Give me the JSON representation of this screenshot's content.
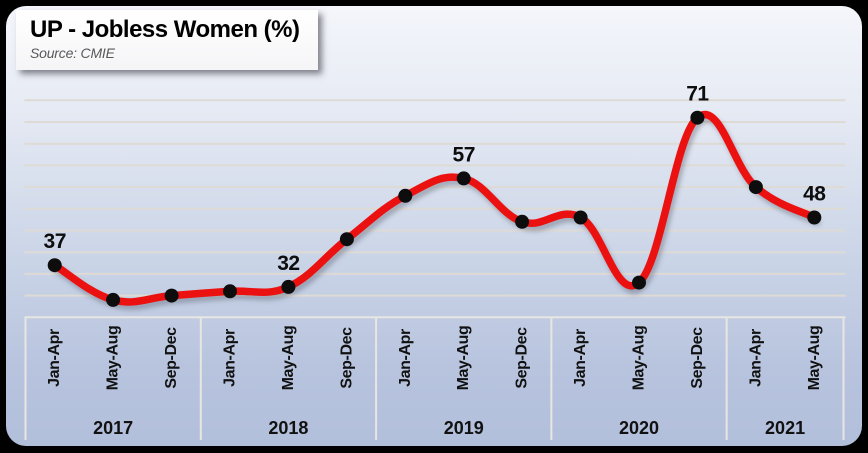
{
  "title_box": {
    "title": "UP - Jobless Women (%)",
    "source": "Source: CMIE"
  },
  "chart_data": {
    "type": "line",
    "title": "UP - Jobless Women (%)",
    "subtitle": "Source: CMIE",
    "x_groups": [
      {
        "year": "2017",
        "periods": [
          "Jan-Apr",
          "May-Aug",
          "Sep-Dec"
        ]
      },
      {
        "year": "2018",
        "periods": [
          "Jan-Apr",
          "May-Aug",
          "Sep-Dec"
        ]
      },
      {
        "year": "2019",
        "periods": [
          "Jan-Apr",
          "May-Aug",
          "Sep-Dec"
        ]
      },
      {
        "year": "2020",
        "periods": [
          "Jan-Apr",
          "May-Aug",
          "Sep-Dec"
        ]
      },
      {
        "year": "2021",
        "periods": [
          "Jan-Apr",
          "May-Aug"
        ]
      }
    ],
    "categories": [
      "Jan-Apr 2017",
      "May-Aug 2017",
      "Sep-Dec 2017",
      "Jan-Apr 2018",
      "May-Aug 2018",
      "Sep-Dec 2018",
      "Jan-Apr 2019",
      "May-Aug 2019",
      "Sep-Dec 2019",
      "Jan-Apr 2020",
      "May-Aug 2020",
      "Sep-Dec 2020",
      "Jan-Apr 2021",
      "May-Aug 2021"
    ],
    "values": [
      37,
      29,
      30,
      31,
      32,
      43,
      53,
      57,
      47,
      48,
      33,
      71,
      55,
      48
    ],
    "labeled_points": [
      0,
      4,
      7,
      11,
      13
    ],
    "labeled_values": {
      "Jan-Apr 2017": 37,
      "May-Aug 2018": 32,
      "May-Aug 2019": 57,
      "Sep-Dec 2020": 71,
      "May-Aug 2021": 48
    },
    "xlabel": "",
    "ylabel": "",
    "ylim": [
      25,
      75
    ],
    "grid_step": 5,
    "grid": true,
    "legend": false,
    "line_color": "#ec1111",
    "marker_color": "#0d0d0d",
    "gridline_color": "#dedad4",
    "axis_line_color": "#e8e6e2",
    "label_color": "#0d0d0d"
  }
}
